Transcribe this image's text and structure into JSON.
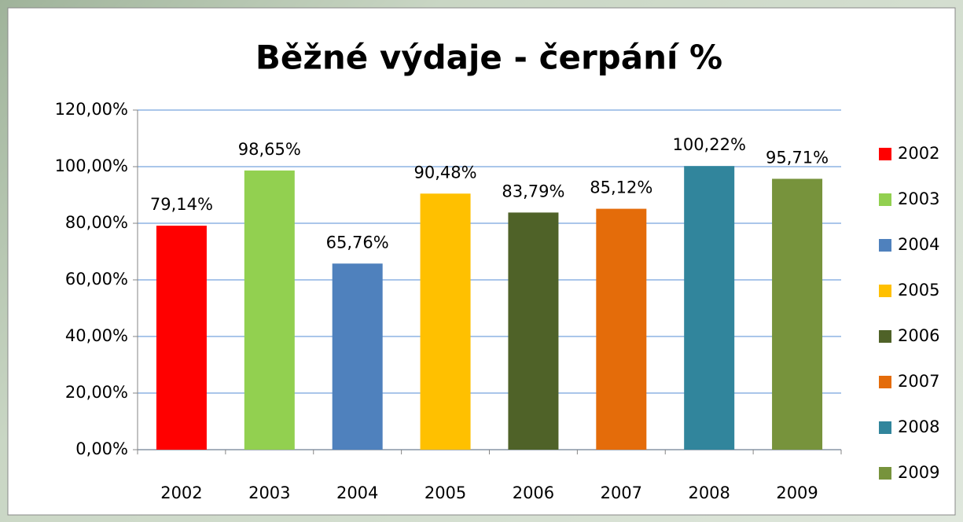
{
  "chart_data": {
    "type": "bar",
    "title": "Běžné výdaje - čerpání %",
    "categories": [
      "2002",
      "2003",
      "2004",
      "2005",
      "2006",
      "2007",
      "2008",
      "2009"
    ],
    "values": [
      79.14,
      98.65,
      65.76,
      90.48,
      83.79,
      85.12,
      100.22,
      95.71
    ],
    "value_labels": [
      "79,14%",
      "98,65%",
      "65,76%",
      "90,48%",
      "83,79%",
      "85,12%",
      "100,22%",
      "95,71%"
    ],
    "colors": [
      "#ff0000",
      "#92d050",
      "#4f81bd",
      "#ffc000",
      "#4f6228",
      "#e46c0a",
      "#31859c",
      "#77933c"
    ],
    "ylim": [
      0,
      120
    ],
    "yticks": [
      {
        "value": 0,
        "label": "0,00%"
      },
      {
        "value": 20,
        "label": "20,00%"
      },
      {
        "value": 40,
        "label": "40,00%"
      },
      {
        "value": 60,
        "label": "60,00%"
      },
      {
        "value": 80,
        "label": "80,00%"
      },
      {
        "value": 100,
        "label": "100,00%"
      },
      {
        "value": 120,
        "label": "120,00%"
      }
    ],
    "grid": true,
    "legend": "right"
  }
}
